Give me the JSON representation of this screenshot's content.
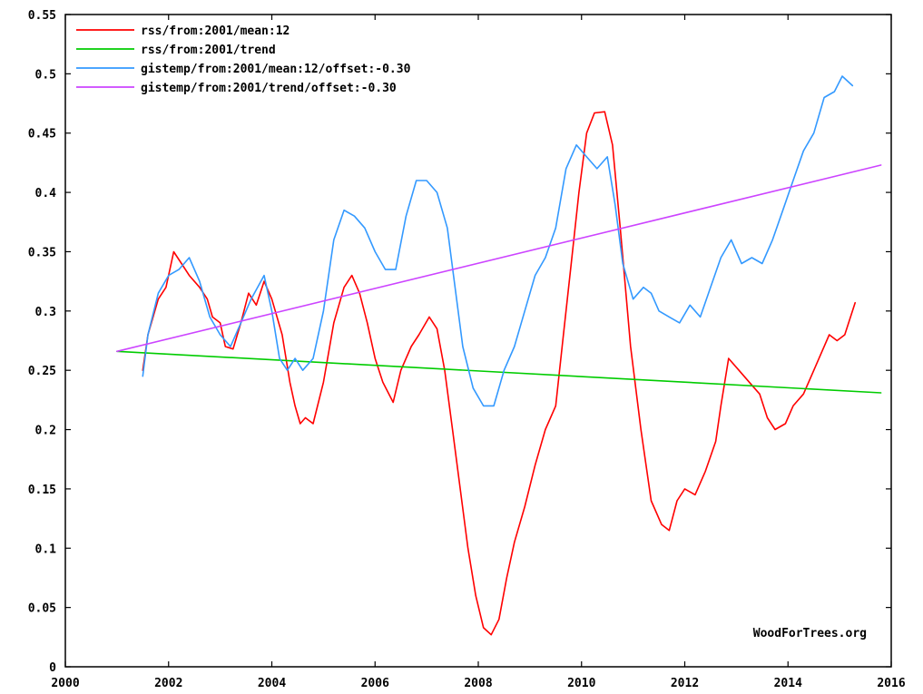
{
  "chart_data": {
    "type": "line",
    "title": "",
    "xlabel": "",
    "ylabel": "",
    "xlim": [
      2000,
      2016
    ],
    "ylim": [
      0,
      0.55
    ],
    "x_ticks": [
      "2000",
      "2002",
      "2004",
      "2006",
      "2008",
      "2010",
      "2012",
      "2014",
      "2016"
    ],
    "y_ticks": [
      "0",
      "0.05",
      "0.1",
      "0.15",
      "0.2",
      "0.25",
      "0.3",
      "0.35",
      "0.4",
      "0.45",
      "0.5",
      "0.55"
    ],
    "grid": false,
    "legend_position": "top-left",
    "watermark": "WoodForTrees.org",
    "series": [
      {
        "name": "rss/from:2001/mean:12",
        "color": "#ff0000",
        "points": [
          [
            2001.5,
            0.25
          ],
          [
            2001.6,
            0.28
          ],
          [
            2001.8,
            0.31
          ],
          [
            2001.95,
            0.32
          ],
          [
            2002.1,
            0.35
          ],
          [
            2002.25,
            0.34
          ],
          [
            2002.4,
            0.33
          ],
          [
            2002.6,
            0.32
          ],
          [
            2002.75,
            0.31
          ],
          [
            2002.85,
            0.295
          ],
          [
            2003.0,
            0.29
          ],
          [
            2003.1,
            0.27
          ],
          [
            2003.25,
            0.268
          ],
          [
            2003.4,
            0.29
          ],
          [
            2003.55,
            0.315
          ],
          [
            2003.7,
            0.305
          ],
          [
            2003.85,
            0.325
          ],
          [
            2004.0,
            0.31
          ],
          [
            2004.2,
            0.28
          ],
          [
            2004.35,
            0.24
          ],
          [
            2004.45,
            0.22
          ],
          [
            2004.55,
            0.205
          ],
          [
            2004.65,
            0.21
          ],
          [
            2004.8,
            0.205
          ],
          [
            2005.0,
            0.24
          ],
          [
            2005.2,
            0.29
          ],
          [
            2005.4,
            0.32
          ],
          [
            2005.55,
            0.33
          ],
          [
            2005.7,
            0.315
          ],
          [
            2005.85,
            0.29
          ],
          [
            2006.0,
            0.26
          ],
          [
            2006.15,
            0.24
          ],
          [
            2006.35,
            0.223
          ],
          [
            2006.5,
            0.25
          ],
          [
            2006.7,
            0.27
          ],
          [
            2006.85,
            0.28
          ],
          [
            2007.05,
            0.295
          ],
          [
            2007.2,
            0.285
          ],
          [
            2007.35,
            0.25
          ],
          [
            2007.5,
            0.2
          ],
          [
            2007.65,
            0.15
          ],
          [
            2007.8,
            0.1
          ],
          [
            2007.95,
            0.06
          ],
          [
            2008.1,
            0.033
          ],
          [
            2008.25,
            0.027
          ],
          [
            2008.4,
            0.04
          ],
          [
            2008.55,
            0.075
          ],
          [
            2008.7,
            0.105
          ],
          [
            2008.9,
            0.135
          ],
          [
            2009.1,
            0.17
          ],
          [
            2009.3,
            0.2
          ],
          [
            2009.5,
            0.22
          ],
          [
            2009.65,
            0.28
          ],
          [
            2009.8,
            0.34
          ],
          [
            2009.95,
            0.4
          ],
          [
            2010.1,
            0.45
          ],
          [
            2010.25,
            0.467
          ],
          [
            2010.45,
            0.468
          ],
          [
            2010.6,
            0.44
          ],
          [
            2010.75,
            0.37
          ],
          [
            2010.95,
            0.27
          ],
          [
            2011.15,
            0.2
          ],
          [
            2011.35,
            0.14
          ],
          [
            2011.55,
            0.12
          ],
          [
            2011.7,
            0.115
          ],
          [
            2011.85,
            0.14
          ],
          [
            2012.0,
            0.15
          ],
          [
            2012.2,
            0.145
          ],
          [
            2012.4,
            0.165
          ],
          [
            2012.6,
            0.19
          ],
          [
            2012.7,
            0.22
          ],
          [
            2012.85,
            0.26
          ],
          [
            2013.05,
            0.25
          ],
          [
            2013.25,
            0.24
          ],
          [
            2013.45,
            0.23
          ],
          [
            2013.6,
            0.21
          ],
          [
            2013.75,
            0.2
          ],
          [
            2013.95,
            0.205
          ],
          [
            2014.1,
            0.22
          ],
          [
            2014.3,
            0.23
          ],
          [
            2014.5,
            0.25
          ],
          [
            2014.65,
            0.265
          ],
          [
            2014.8,
            0.28
          ],
          [
            2014.95,
            0.275
          ],
          [
            2015.1,
            0.28
          ],
          [
            2015.3,
            0.307
          ]
        ]
      },
      {
        "name": "rss/from:2001/trend",
        "color": "#00cc00",
        "points": [
          [
            2001.0,
            0.266
          ],
          [
            2015.8,
            0.231
          ]
        ]
      },
      {
        "name": "gistemp/from:2001/mean:12/offset:-0.30",
        "color": "#3399ff",
        "points": [
          [
            2001.5,
            0.245
          ],
          [
            2001.6,
            0.28
          ],
          [
            2001.8,
            0.315
          ],
          [
            2002.0,
            0.33
          ],
          [
            2002.2,
            0.335
          ],
          [
            2002.4,
            0.345
          ],
          [
            2002.6,
            0.325
          ],
          [
            2002.8,
            0.295
          ],
          [
            2003.0,
            0.28
          ],
          [
            2003.2,
            0.27
          ],
          [
            2003.4,
            0.29
          ],
          [
            2003.6,
            0.31
          ],
          [
            2003.85,
            0.33
          ],
          [
            2004.0,
            0.3
          ],
          [
            2004.15,
            0.26
          ],
          [
            2004.3,
            0.25
          ],
          [
            2004.45,
            0.26
          ],
          [
            2004.6,
            0.25
          ],
          [
            2004.8,
            0.26
          ],
          [
            2005.0,
            0.3
          ],
          [
            2005.2,
            0.36
          ],
          [
            2005.4,
            0.385
          ],
          [
            2005.6,
            0.38
          ],
          [
            2005.8,
            0.37
          ],
          [
            2006.0,
            0.35
          ],
          [
            2006.2,
            0.335
          ],
          [
            2006.4,
            0.335
          ],
          [
            2006.6,
            0.38
          ],
          [
            2006.8,
            0.41
          ],
          [
            2007.0,
            0.41
          ],
          [
            2007.2,
            0.4
          ],
          [
            2007.4,
            0.37
          ],
          [
            2007.55,
            0.32
          ],
          [
            2007.7,
            0.27
          ],
          [
            2007.9,
            0.235
          ],
          [
            2008.1,
            0.22
          ],
          [
            2008.3,
            0.22
          ],
          [
            2008.5,
            0.25
          ],
          [
            2008.7,
            0.27
          ],
          [
            2008.9,
            0.3
          ],
          [
            2009.1,
            0.33
          ],
          [
            2009.3,
            0.345
          ],
          [
            2009.5,
            0.37
          ],
          [
            2009.7,
            0.42
          ],
          [
            2009.9,
            0.44
          ],
          [
            2010.1,
            0.43
          ],
          [
            2010.3,
            0.42
          ],
          [
            2010.5,
            0.43
          ],
          [
            2010.65,
            0.39
          ],
          [
            2010.8,
            0.34
          ],
          [
            2011.0,
            0.31
          ],
          [
            2011.2,
            0.32
          ],
          [
            2011.35,
            0.315
          ],
          [
            2011.5,
            0.3
          ],
          [
            2011.7,
            0.295
          ],
          [
            2011.9,
            0.29
          ],
          [
            2012.1,
            0.305
          ],
          [
            2012.3,
            0.295
          ],
          [
            2012.5,
            0.32
          ],
          [
            2012.7,
            0.345
          ],
          [
            2012.9,
            0.36
          ],
          [
            2013.1,
            0.34
          ],
          [
            2013.3,
            0.345
          ],
          [
            2013.5,
            0.34
          ],
          [
            2013.7,
            0.36
          ],
          [
            2013.9,
            0.385
          ],
          [
            2014.1,
            0.41
          ],
          [
            2014.3,
            0.435
          ],
          [
            2014.5,
            0.45
          ],
          [
            2014.7,
            0.48
          ],
          [
            2014.9,
            0.485
          ],
          [
            2015.05,
            0.498
          ],
          [
            2015.25,
            0.49
          ]
        ]
      },
      {
        "name": "gistemp/from:2001/trend/offset:-0.30",
        "color": "#cc44ff",
        "points": [
          [
            2001.0,
            0.266
          ],
          [
            2015.8,
            0.423
          ]
        ]
      }
    ]
  }
}
